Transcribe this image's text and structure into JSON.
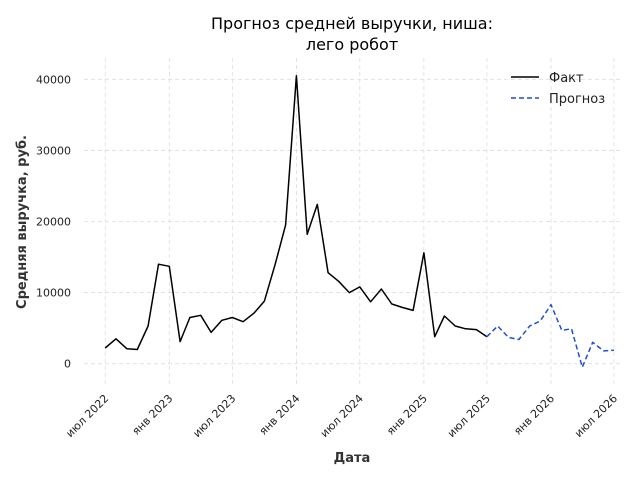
{
  "chart_data": {
    "type": "line",
    "title": [
      "Прогноз средней выручки, ниша:",
      "лего робот"
    ],
    "xlabel": "Дата",
    "ylabel": "Средняя выручка, руб.",
    "ylim": [
      -3000,
      43000
    ],
    "yticks": [
      0,
      10000,
      20000,
      30000,
      40000
    ],
    "xlim": [
      "2022-05-01",
      "2026-07-24"
    ],
    "xticks": [
      {
        "date": "2022-07-01",
        "label": "июл 2022"
      },
      {
        "date": "2023-01-01",
        "label": "янв 2023"
      },
      {
        "date": "2023-07-01",
        "label": "июл 2023"
      },
      {
        "date": "2024-01-01",
        "label": "янв 2024"
      },
      {
        "date": "2024-07-01",
        "label": "июл 2024"
      },
      {
        "date": "2025-01-01",
        "label": "янв 2025"
      },
      {
        "date": "2025-07-01",
        "label": "июл 2025"
      },
      {
        "date": "2026-01-01",
        "label": "янв 2026"
      },
      {
        "date": "2026-07-01",
        "label": "июл 2026"
      }
    ],
    "grid": true,
    "legend_position": "top-right",
    "series": [
      {
        "name": "Факт",
        "color": "#000000",
        "style": "solid",
        "x": [
          "2022-07",
          "2022-08",
          "2022-09",
          "2022-10",
          "2022-11",
          "2022-12",
          "2023-01",
          "2023-02",
          "2023-03",
          "2023-04",
          "2023-05",
          "2023-06",
          "2023-07",
          "2023-08",
          "2023-09",
          "2023-10",
          "2023-11",
          "2023-12",
          "2024-01",
          "2024-02",
          "2024-03",
          "2024-04",
          "2024-05",
          "2024-06",
          "2024-07",
          "2024-08",
          "2024-09",
          "2024-10",
          "2024-11",
          "2024-12",
          "2025-01",
          "2025-02",
          "2025-03",
          "2025-04",
          "2025-05",
          "2025-06",
          "2025-07"
        ],
        "y": [
          2200,
          3500,
          2100,
          2000,
          5300,
          14000,
          13700,
          3100,
          6500,
          6800,
          4400,
          6100,
          6500,
          5900,
          7100,
          8800,
          14000,
          19500,
          40500,
          18200,
          22400,
          12800,
          11600,
          10000,
          10800,
          8700,
          10500,
          8400,
          7900,
          7500,
          15600,
          3800,
          6700,
          5300,
          4900,
          4800,
          3800
        ]
      },
      {
        "name": "Прогноз",
        "color": "#1f4fd0",
        "style": "dashed",
        "x": [
          "2025-07",
          "2025-08",
          "2025-09",
          "2025-10",
          "2025-11",
          "2025-12",
          "2026-01",
          "2026-02",
          "2026-03",
          "2026-04",
          "2026-05",
          "2026-06",
          "2026-07"
        ],
        "y": [
          3800,
          5300,
          3700,
          3400,
          5300,
          6000,
          8300,
          4700,
          4900,
          -500,
          3000,
          1800,
          1900
        ]
      }
    ]
  }
}
